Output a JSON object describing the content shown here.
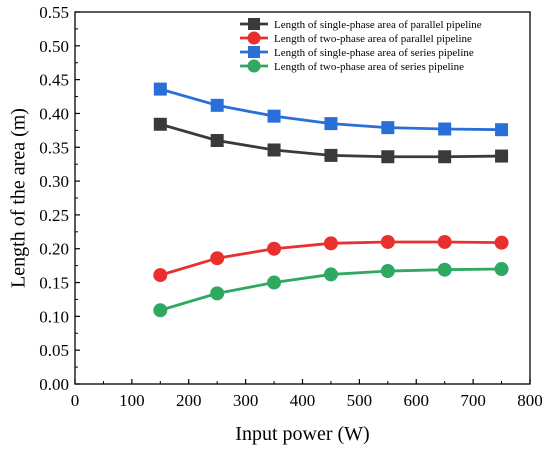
{
  "chart_data": {
    "type": "line",
    "xlabel": "Input power (W)",
    "ylabel": "Length of the area (m)",
    "xlim": [
      0,
      800
    ],
    "ylim": [
      0.0,
      0.55
    ],
    "xticks": [
      "0",
      "100",
      "200",
      "300",
      "400",
      "500",
      "600",
      "700",
      "800"
    ],
    "yticks": [
      "0.00",
      "0.05",
      "0.10",
      "0.15",
      "0.20",
      "0.25",
      "0.30",
      "0.35",
      "0.40",
      "0.45",
      "0.50",
      "0.55"
    ],
    "grid": false,
    "legend_position": "top-right",
    "x": [
      150,
      250,
      350,
      450,
      550,
      650,
      750
    ],
    "series": [
      {
        "name": "Length of single-phase area of parallel pipeline",
        "color": "#3a3a3a",
        "marker": "square",
        "values": [
          0.384,
          0.36,
          0.346,
          0.338,
          0.336,
          0.336,
          0.337
        ]
      },
      {
        "name": "Length of two-phase area of parallel pipeline",
        "color": "#e8312f",
        "marker": "circle",
        "values": [
          0.161,
          0.186,
          0.2,
          0.208,
          0.21,
          0.21,
          0.209
        ]
      },
      {
        "name": "Length of single-phase area of series pipeline",
        "color": "#2a6fd8",
        "marker": "square",
        "values": [
          0.436,
          0.412,
          0.396,
          0.385,
          0.379,
          0.377,
          0.376
        ]
      },
      {
        "name": "Length of two-phase area of series pipeline",
        "color": "#2fa862",
        "marker": "circle",
        "values": [
          0.109,
          0.134,
          0.15,
          0.162,
          0.167,
          0.169,
          0.17
        ]
      }
    ]
  }
}
